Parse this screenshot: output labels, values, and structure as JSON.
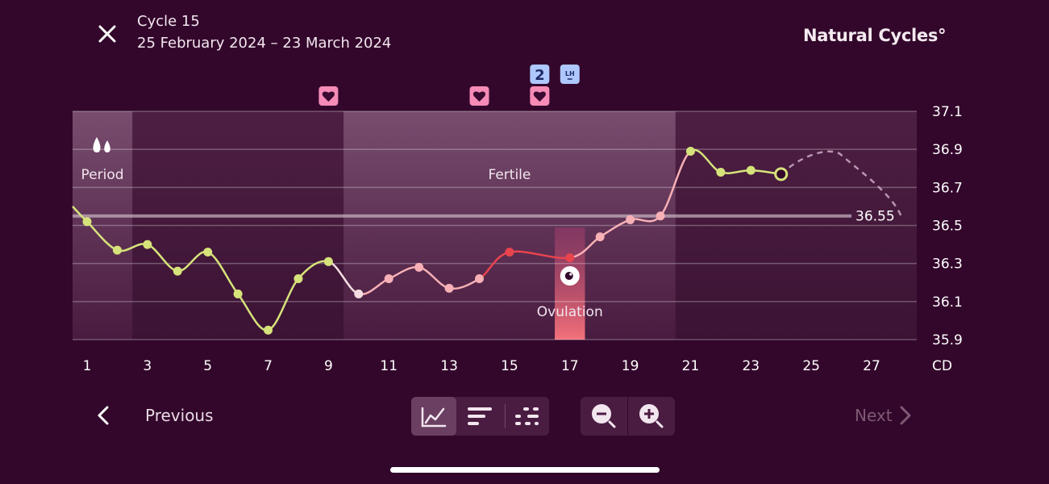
{
  "header": {
    "title": "Cycle 15",
    "date_range": "25 February 2024 – 23 March 2024",
    "brand": "Natural Cycles°",
    "close_icon": "close-icon"
  },
  "colors": {
    "background": "#33072b",
    "normal_temp": "#d6e37a",
    "fertile_temp": "#f7b0b5",
    "peak_temp": "#e8444e",
    "marker": "#f58bb6",
    "lh_marker": "#aec8ff"
  },
  "chart_data": {
    "type": "line",
    "xlabel": "CD",
    "ylim": [
      35.9,
      37.1
    ],
    "yticks": [
      "37.1",
      "36.9",
      "36.7",
      "36.5",
      "36.3",
      "36.1",
      "35.9"
    ],
    "xticks": [
      "1",
      "3",
      "5",
      "7",
      "9",
      "11",
      "13",
      "15",
      "17",
      "19",
      "21",
      "23",
      "25",
      "27"
    ],
    "coverline": 36.55,
    "coverline_label": "36.55",
    "x": [
      1,
      2,
      3,
      4,
      5,
      6,
      7,
      8,
      9,
      10,
      11,
      12,
      13,
      14,
      15,
      17,
      18,
      19,
      20,
      21,
      22,
      23,
      24
    ],
    "temperatures": [
      36.52,
      36.37,
      36.4,
      36.26,
      36.36,
      36.14,
      35.95,
      36.22,
      36.31,
      36.14,
      36.22,
      36.28,
      36.17,
      36.22,
      36.36,
      36.33,
      36.44,
      36.53,
      36.55,
      36.89,
      36.78,
      36.79,
      36.77
    ],
    "point_colors": [
      "#d6e37a",
      "#d6e37a",
      "#d6e37a",
      "#d6e37a",
      "#d6e37a",
      "#d6e37a",
      "#d6e37a",
      "#d6e37a",
      "#d6e37a",
      "#f4dde0",
      "#f7b0b5",
      "#f7b0b5",
      "#f7b0b5",
      "#f7b0b5",
      "#e8444e",
      "#e8444e",
      "#f7b0b5",
      "#f7b0b5",
      "#f7b0b5",
      "#d6e37a",
      "#d6e37a",
      "#d6e37a",
      "#d6e37a"
    ],
    "predicted_curve": {
      "x": [
        24,
        26,
        28
      ],
      "y": [
        36.77,
        36.87,
        36.54
      ]
    },
    "phases": [
      {
        "label": "Period",
        "start": 1,
        "end": 2
      },
      {
        "label": "Fertile",
        "start": 10,
        "end": 20
      },
      {
        "label": "Ovulation",
        "start": 17,
        "end": 17
      }
    ],
    "markers": [
      {
        "day": 9,
        "type": "heart-icon"
      },
      {
        "day": 14,
        "type": "heart-icon"
      },
      {
        "day": 16,
        "type": "heart-icon"
      },
      {
        "day": 16,
        "type": "count-badge",
        "label": "2"
      },
      {
        "day": 17,
        "type": "lh-test-icon",
        "label": "LH"
      }
    ]
  },
  "nav": {
    "previous_label": "Previous",
    "next_label": "Next",
    "view_buttons": [
      "line-chart-icon",
      "bar-list-icon",
      "dot-grid-icon"
    ],
    "zoom_buttons": [
      "zoom-out-icon",
      "zoom-in-icon"
    ]
  }
}
